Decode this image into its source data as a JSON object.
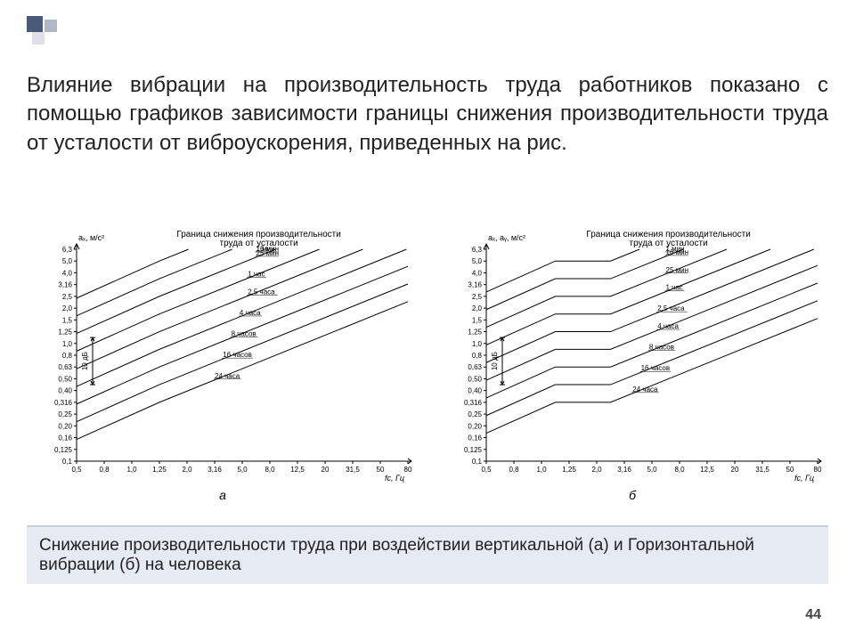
{
  "page_number": "44",
  "main_paragraph": "Влияние вибрации на производительность труда работников показано с помощью графиков зависимости границы снижения производительности труда от усталости от виброускорения, приведенных на рис.",
  "caption": "Снижение производительности труда при воздействии вертикальной (а) и Горизонтальной вибрации (б) на человека",
  "axis": {
    "y_label_a": "aₓ, м/с²",
    "y_label_b": "aₓ, aᵧ, м/с²",
    "y_ticks": [
      "6,3",
      "5,0",
      "4,0",
      "3,16",
      "2,5",
      "2,0",
      "1,5",
      "1,25",
      "1,0",
      "0,8",
      "0,63",
      "0,50",
      "0,40",
      "0,316",
      "0,25",
      "0,20",
      "0,16",
      "0,125",
      "0,1"
    ],
    "x_ticks": [
      "0,5",
      "0,8",
      "1,0",
      "1,25",
      "2,0",
      "3,16",
      "5,0",
      "8,0",
      "12,5",
      "20",
      "31,5",
      "50",
      "80"
    ],
    "x_label": "fс, Гц",
    "db_label": "10 дБ"
  },
  "chart_title": "Граница снижения производительности труда от усталости",
  "chart_a": {
    "type": "line",
    "sublabel": "а",
    "valley_x": 3,
    "color": "#000000",
    "line_width": 1,
    "series": [
      {
        "label": "1 мин",
        "base_y": 1,
        "label_x": 6.5
      },
      {
        "label": "16 мин",
        "base_y": 2.5,
        "label_x": 6.5
      },
      {
        "label": "25 мин",
        "base_y": 4,
        "label_x": 6.5
      },
      {
        "label": "1 час",
        "base_y": 5.5,
        "label_x": 6.2
      },
      {
        "label": "2,5 часа",
        "base_y": 7,
        "label_x": 6.2
      },
      {
        "label": "4 часа",
        "base_y": 8.5,
        "label_x": 5.9
      },
      {
        "label": "8 часов",
        "base_y": 10,
        "label_x": 5.6
      },
      {
        "label": "16 часов",
        "base_y": 11.5,
        "label_x": 5.3
      },
      {
        "label": "24 часа",
        "base_y": 13,
        "label_x": 5.0
      }
    ]
  },
  "chart_b": {
    "type": "line",
    "sublabel": "б",
    "flat_x0": 2.5,
    "flat_x1": 4.5,
    "color": "#000000",
    "line_width": 1,
    "series": [
      {
        "label": "1 мин",
        "base_y": 1,
        "label_x": 6.5
      },
      {
        "label": "16 мин",
        "base_y": 2.5,
        "label_x": 6.5
      },
      {
        "label": "25 мин",
        "base_y": 4,
        "label_x": 6.5
      },
      {
        "label": "1 час",
        "base_y": 5.5,
        "label_x": 6.5
      },
      {
        "label": "2,5 часа",
        "base_y": 7,
        "label_x": 6.2
      },
      {
        "label": "4 часа",
        "base_y": 8.5,
        "label_x": 6.2
      },
      {
        "label": "8 часов",
        "base_y": 10,
        "label_x": 5.9
      },
      {
        "label": "16 часов",
        "base_y": 11.5,
        "label_x": 5.6
      },
      {
        "label": "24 часа",
        "base_y": 13,
        "label_x": 5.3
      }
    ]
  },
  "colors": {
    "background": "#ffffff",
    "text": "#222222",
    "axis": "#000000",
    "caption_bg": "#e6eaf2",
    "caption_border": "#c8cedc",
    "deco1": "#4a5a7a",
    "deco2": "#b0b8c8",
    "deco3": "#dde0e8"
  },
  "typography": {
    "main_fontsize": 24,
    "caption_fontsize": 19,
    "chart_tick_fontsize": 8,
    "chart_title_fontsize": 10,
    "chart_label_fontsize": 8
  }
}
